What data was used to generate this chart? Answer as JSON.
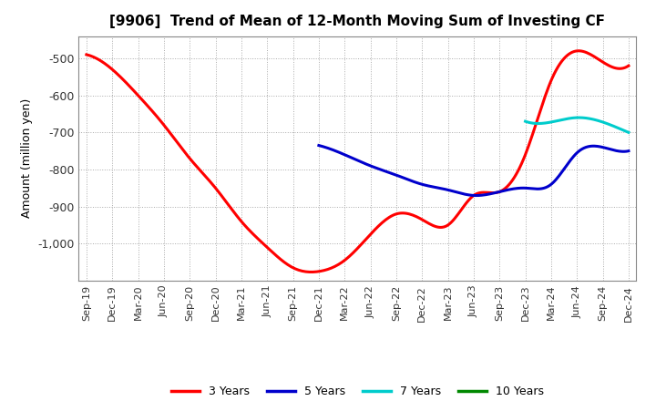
{
  "title": "[9906]  Trend of Mean of 12-Month Moving Sum of Investing CF",
  "ylabel": "Amount (million yen)",
  "background_color": "#ffffff",
  "grid_color": "#aaaaaa",
  "ylim": [
    -1100,
    -440
  ],
  "yticks": [
    -1000,
    -900,
    -800,
    -700,
    -600,
    -500
  ],
  "legend_labels": [
    "3 Years",
    "5 Years",
    "7 Years",
    "10 Years"
  ],
  "legend_colors": [
    "#ff0000",
    "#0000cc",
    "#00cccc",
    "#008800"
  ],
  "x_labels": [
    "Sep-19",
    "Dec-19",
    "Mar-20",
    "Jun-20",
    "Sep-20",
    "Dec-20",
    "Mar-21",
    "Jun-21",
    "Sep-21",
    "Dec-21",
    "Mar-22",
    "Jun-22",
    "Sep-22",
    "Dec-22",
    "Mar-23",
    "Jun-23",
    "Sep-23",
    "Dec-23",
    "Mar-24",
    "Jun-24",
    "Sep-24",
    "Dec-24"
  ],
  "series_3y": {
    "color": "#ff0000",
    "x": [
      0,
      1,
      2,
      3,
      4,
      5,
      6,
      7,
      8,
      9,
      10,
      11,
      12,
      13,
      14,
      15,
      16,
      17,
      18,
      19,
      20,
      21
    ],
    "y": [
      -490,
      -530,
      -600,
      -680,
      -770,
      -850,
      -940,
      -1010,
      -1065,
      -1075,
      -1045,
      -975,
      -920,
      -935,
      -950,
      -870,
      -860,
      -760,
      -560,
      -480,
      -510,
      -520
    ]
  },
  "series_5y": {
    "color": "#0000cc",
    "x": [
      9,
      10,
      11,
      12,
      13,
      14,
      15,
      16,
      17,
      18,
      19,
      20,
      21
    ],
    "y": [
      -735,
      -760,
      -790,
      -815,
      -840,
      -855,
      -870,
      -860,
      -850,
      -840,
      -755,
      -740,
      -750
    ]
  },
  "series_7y": {
    "color": "#00cccc",
    "x": [
      17,
      18,
      19,
      20,
      21
    ],
    "y": [
      -670,
      -672,
      -660,
      -672,
      -700
    ]
  },
  "series_10y": {
    "color": "#008800",
    "x": [],
    "y": []
  }
}
